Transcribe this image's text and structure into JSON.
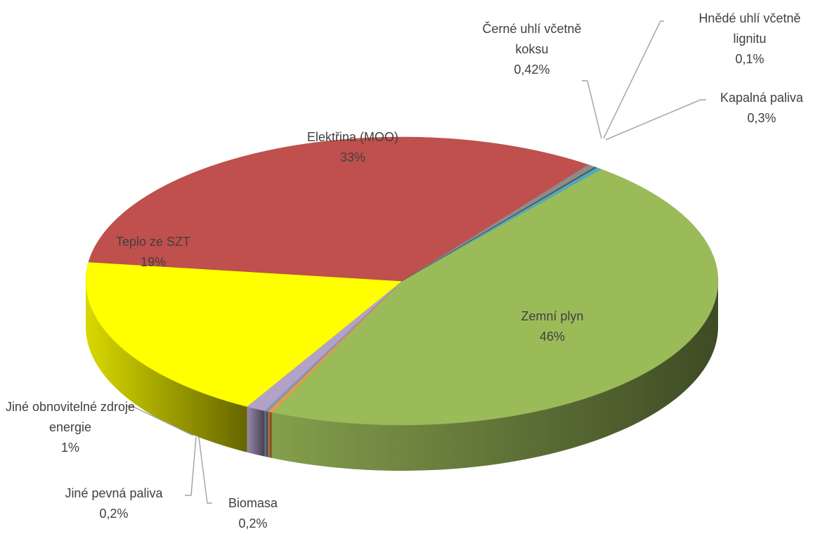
{
  "chart_data": {
    "type": "pie",
    "categories": [
      "Kapalná paliva",
      "Zemní plyn",
      "Biomasa",
      "Jiné pevná paliva",
      "Jiné obnovitelné zdroje energie",
      "Teplo ze SZT",
      "Elektřina (MOO)",
      "Černé uhlí včetně koksu",
      "Hnědé uhlí včetně lignitu"
    ],
    "values": [
      0.3,
      46,
      0.2,
      0.2,
      1,
      19,
      33,
      0.42,
      0.1
    ],
    "value_labels": [
      "0,3%",
      "46%",
      "0,2%",
      "0,2%",
      "1%",
      "19%",
      "33%",
      "0,42%",
      "0,1%"
    ],
    "colors": [
      "#4bacc6",
      "#9bbb59",
      "#f79646",
      "#8497b0",
      "#b3a2c7",
      "#ffff00",
      "#c0504d",
      "#8c8c8c",
      "#595959"
    ]
  }
}
